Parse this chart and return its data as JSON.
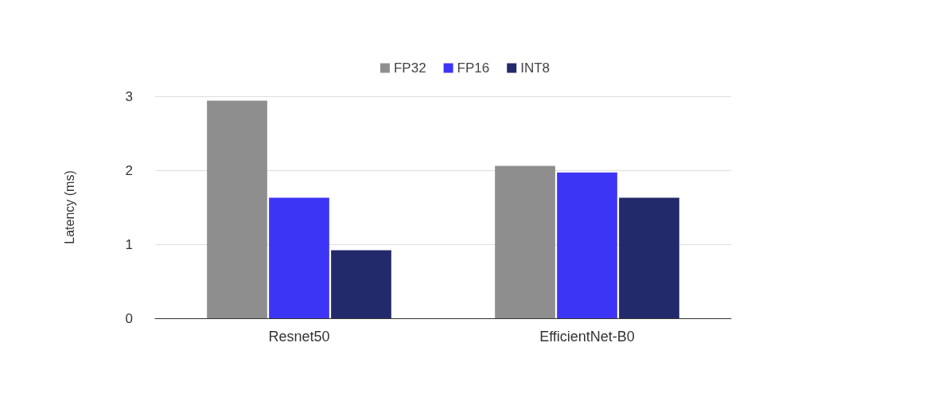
{
  "chart_data": {
    "type": "bar",
    "ylabel": "Latency (ms)",
    "categories": [
      "Resnet50",
      "EfficientNet-B0"
    ],
    "series": [
      {
        "name": "FP32",
        "color": "#8e8e8e",
        "values": [
          2.94,
          2.06
        ]
      },
      {
        "name": "FP16",
        "color": "#3d35f5",
        "values": [
          1.63,
          1.97
        ]
      },
      {
        "name": "INT8",
        "color": "#232a6b",
        "values": [
          0.92,
          1.63
        ]
      }
    ],
    "ylim": [
      0,
      3
    ],
    "yticks": [
      0,
      1,
      2,
      3
    ],
    "grid": "y",
    "legend": "top"
  }
}
